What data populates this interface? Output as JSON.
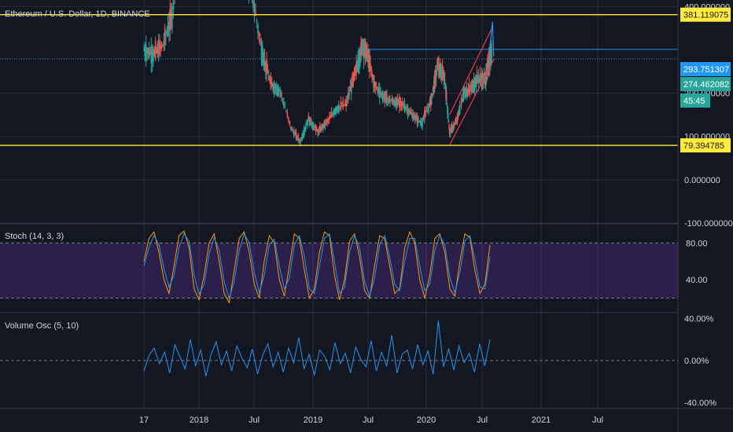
{
  "chart_data": [
    {
      "type": "candlestick",
      "title": "Ethereum / U.S. Dollar, 1D, BINANCE",
      "ylim": [
        -100,
        415
      ],
      "y_ticks": [
        "-100.000000",
        "0.000000",
        "100.000000",
        "200.000000",
        "400.000000"
      ],
      "y_tick_values": [
        -100,
        0,
        100,
        200,
        400
      ],
      "levels": [
        {
          "label": "381.119075",
          "value": 381.12,
          "color": "#ffeb3b"
        },
        {
          "label": "79.394785",
          "value": 79.39,
          "color": "#ffeb3b"
        }
      ],
      "price_labels": [
        {
          "label": "293.751307",
          "value": 293.75,
          "color": "#2196f3"
        },
        {
          "label": "274.462082",
          "value": 274.46,
          "color": "#26a69a"
        },
        {
          "label": "45:45",
          "value": 256,
          "color": "#26a69a"
        }
      ],
      "x_axis_labels": [
        "17",
        "2018",
        "Jul",
        "2019",
        "Jul",
        "2020",
        "Jul",
        "2021",
        "Jul"
      ],
      "series_close": [
        {
          "x": 2017.62,
          "y": 300
        },
        {
          "x": 2017.7,
          "y": 290
        },
        {
          "x": 2017.78,
          "y": 310
        },
        {
          "x": 2017.86,
          "y": 380
        },
        {
          "x": 2017.96,
          "y": 700
        },
        {
          "x": 2018.05,
          "y": 1200
        },
        {
          "x": 2018.12,
          "y": 900
        },
        {
          "x": 2018.2,
          "y": 700
        },
        {
          "x": 2018.3,
          "y": 600
        },
        {
          "x": 2018.38,
          "y": 700
        },
        {
          "x": 2018.45,
          "y": 550
        },
        {
          "x": 2018.53,
          "y": 450
        },
        {
          "x": 2018.62,
          "y": 300
        },
        {
          "x": 2018.7,
          "y": 220
        },
        {
          "x": 2018.78,
          "y": 205
        },
        {
          "x": 2018.87,
          "y": 120
        },
        {
          "x": 2018.95,
          "y": 88
        },
        {
          "x": 2019.02,
          "y": 140
        },
        {
          "x": 2019.1,
          "y": 110
        },
        {
          "x": 2019.18,
          "y": 135
        },
        {
          "x": 2019.26,
          "y": 165
        },
        {
          "x": 2019.34,
          "y": 175
        },
        {
          "x": 2019.42,
          "y": 250
        },
        {
          "x": 2019.48,
          "y": 310
        },
        {
          "x": 2019.52,
          "y": 290
        },
        {
          "x": 2019.58,
          "y": 220
        },
        {
          "x": 2019.66,
          "y": 190
        },
        {
          "x": 2019.74,
          "y": 180
        },
        {
          "x": 2019.82,
          "y": 175
        },
        {
          "x": 2019.9,
          "y": 150
        },
        {
          "x": 2019.98,
          "y": 130
        },
        {
          "x": 2020.06,
          "y": 180
        },
        {
          "x": 2020.12,
          "y": 265
        },
        {
          "x": 2020.18,
          "y": 230
        },
        {
          "x": 2020.22,
          "y": 110
        },
        {
          "x": 2020.28,
          "y": 135
        },
        {
          "x": 2020.34,
          "y": 200
        },
        {
          "x": 2020.4,
          "y": 210
        },
        {
          "x": 2020.46,
          "y": 235
        },
        {
          "x": 2020.52,
          "y": 230
        },
        {
          "x": 2020.56,
          "y": 275
        },
        {
          "x": 2020.58,
          "y": 294
        }
      ],
      "channel_lines": [
        {
          "x1": 2020.22,
          "y1": 150,
          "x2": 2020.58,
          "y2": 350
        },
        {
          "x1": 2020.22,
          "y1": 80,
          "x2": 2020.6,
          "y2": 280
        }
      ]
    },
    {
      "type": "line",
      "title": "Stoch (14, 3, 3)",
      "ylim": [
        5,
        100
      ],
      "y_ticks": [
        "80.00",
        "40.00"
      ],
      "y_tick_values": [
        80,
        40
      ],
      "band": [
        20,
        80
      ],
      "series": [
        {
          "name": "%K",
          "color": "#ff9800",
          "values": [
            60,
            85,
            92,
            70,
            40,
            25,
            55,
            88,
            93,
            75,
            30,
            18,
            45,
            80,
            90,
            60,
            25,
            15,
            50,
            85,
            92,
            70,
            35,
            20,
            60,
            88,
            80,
            40,
            22,
            55,
            90,
            85,
            50,
            20,
            30,
            70,
            92,
            88,
            45,
            18,
            40,
            82,
            90,
            65,
            28,
            20,
            55,
            88,
            85,
            55,
            25,
            30,
            75,
            92,
            80,
            40,
            20,
            45,
            85,
            90,
            70,
            30,
            22,
            60,
            90,
            86,
            50,
            25,
            35,
            78
          ]
        },
        {
          "name": "%D",
          "color": "#2196f3",
          "values": [
            55,
            75,
            88,
            78,
            52,
            32,
            45,
            75,
            90,
            82,
            45,
            24,
            35,
            68,
            86,
            72,
            38,
            20,
            38,
            72,
            90,
            80,
            48,
            26,
            45,
            78,
            84,
            55,
            30,
            42,
            78,
            88,
            65,
            30,
            25,
            55,
            85,
            90,
            60,
            25,
            32,
            70,
            88,
            75,
            38,
            22,
            42,
            78,
            88,
            65,
            35,
            28,
            60,
            85,
            85,
            55,
            28,
            35,
            72,
            88,
            78,
            42,
            26,
            48,
            82,
            88,
            62,
            32,
            30,
            65
          ]
        }
      ]
    },
    {
      "type": "line",
      "title": "Volume Osc (5, 10)",
      "ylim": [
        -45,
        45
      ],
      "y_ticks": [
        "40.00%",
        "0.00%",
        "-40.00%"
      ],
      "y_tick_values": [
        40,
        0,
        -40
      ],
      "series": [
        {
          "name": "Volume Osc",
          "color": "#2196f3",
          "values": [
            -10,
            5,
            12,
            -3,
            8,
            -12,
            15,
            3,
            -8,
            20,
            -5,
            10,
            -15,
            6,
            18,
            -4,
            9,
            -10,
            14,
            2,
            -7,
            11,
            -13,
            5,
            16,
            -6,
            8,
            -11,
            12,
            -2,
            22,
            -8,
            6,
            -14,
            10,
            4,
            -9,
            17,
            -3,
            7,
            -12,
            13,
            1,
            -6,
            19,
            -10,
            8,
            -5,
            24,
            -12,
            6,
            10,
            -8,
            15,
            -4,
            9,
            -13,
            38,
            -6,
            11,
            -9,
            14,
            -2,
            7,
            -11,
            16,
            -5,
            20
          ]
        }
      ]
    }
  ]
}
